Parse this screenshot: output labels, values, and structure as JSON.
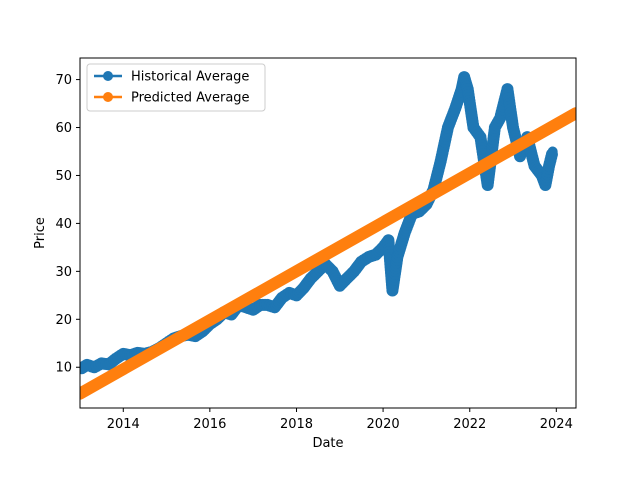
{
  "chart_data": {
    "type": "line",
    "title": "",
    "xlabel": "Date",
    "ylabel": "Price",
    "x_axis": {
      "type": "date",
      "range": [
        "2013-01-01",
        "2024-06-15"
      ],
      "ticks": [
        {
          "value": "2014-01-01",
          "label": "2014"
        },
        {
          "value": "2016-01-01",
          "label": "2016"
        },
        {
          "value": "2018-01-01",
          "label": "2018"
        },
        {
          "value": "2020-01-01",
          "label": "2020"
        },
        {
          "value": "2022-01-01",
          "label": "2022"
        },
        {
          "value": "2024-01-01",
          "label": "2024"
        }
      ]
    },
    "y_axis": {
      "range": [
        1.5,
        74.5
      ],
      "ticks": [
        10,
        20,
        30,
        40,
        50,
        60,
        70
      ]
    },
    "grid": false,
    "legend": {
      "placement": "top-left"
    },
    "series": [
      {
        "name": "Historical Average",
        "color": "#1f77b4",
        "marker": "circle",
        "points": [
          [
            "2013-01-15",
            9.8
          ],
          [
            "2013-03-01",
            10.5
          ],
          [
            "2013-05-01",
            10.0
          ],
          [
            "2013-07-01",
            10.8
          ],
          [
            "2013-09-01",
            10.6
          ],
          [
            "2013-11-01",
            11.8
          ],
          [
            "2014-01-01",
            12.8
          ],
          [
            "2014-03-01",
            12.5
          ],
          [
            "2014-05-01",
            13.0
          ],
          [
            "2014-07-01",
            12.8
          ],
          [
            "2014-09-01",
            13.2
          ],
          [
            "2014-11-01",
            14.0
          ],
          [
            "2015-01-01",
            15.0
          ],
          [
            "2015-03-01",
            16.0
          ],
          [
            "2015-05-01",
            16.5
          ],
          [
            "2015-07-01",
            16.8
          ],
          [
            "2015-09-01",
            16.5
          ],
          [
            "2015-11-01",
            17.5
          ],
          [
            "2016-01-01",
            19.0
          ],
          [
            "2016-03-01",
            20.0
          ],
          [
            "2016-05-01",
            21.5
          ],
          [
            "2016-07-01",
            21.0
          ],
          [
            "2016-09-01",
            23.0
          ],
          [
            "2016-11-01",
            22.5
          ],
          [
            "2017-01-01",
            22.0
          ],
          [
            "2017-03-01",
            23.0
          ],
          [
            "2017-05-01",
            23.0
          ],
          [
            "2017-07-01",
            22.5
          ],
          [
            "2017-09-01",
            24.5
          ],
          [
            "2017-11-01",
            25.5
          ],
          [
            "2018-01-01",
            25.0
          ],
          [
            "2018-03-01",
            26.5
          ],
          [
            "2018-05-01",
            28.5
          ],
          [
            "2018-07-01",
            30.0
          ],
          [
            "2018-09-01",
            31.5
          ],
          [
            "2018-11-01",
            30.0
          ],
          [
            "2019-01-01",
            27.0
          ],
          [
            "2019-03-01",
            28.5
          ],
          [
            "2019-05-01",
            30.0
          ],
          [
            "2019-07-01",
            32.0
          ],
          [
            "2019-09-01",
            33.0
          ],
          [
            "2019-11-01",
            33.5
          ],
          [
            "2020-01-01",
            35.0
          ],
          [
            "2020-02-15",
            36.5
          ],
          [
            "2020-03-20",
            26.0
          ],
          [
            "2020-05-01",
            33.0
          ],
          [
            "2020-07-01",
            38.0
          ],
          [
            "2020-09-01",
            42.0
          ],
          [
            "2020-11-01",
            42.5
          ],
          [
            "2021-01-01",
            44.0
          ],
          [
            "2021-03-01",
            47.0
          ],
          [
            "2021-05-01",
            53.0
          ],
          [
            "2021-07-01",
            60.0
          ],
          [
            "2021-09-01",
            64.0
          ],
          [
            "2021-10-25",
            68.0
          ],
          [
            "2021-11-15",
            70.5
          ],
          [
            "2021-12-15",
            68.0
          ],
          [
            "2022-02-01",
            60.0
          ],
          [
            "2022-04-01",
            58.0
          ],
          [
            "2022-06-01",
            48.0
          ],
          [
            "2022-08-01",
            60.0
          ],
          [
            "2022-09-15",
            62.0
          ],
          [
            "2022-11-15",
            68.0
          ],
          [
            "2023-01-01",
            60.0
          ],
          [
            "2023-03-01",
            54.0
          ],
          [
            "2023-05-01",
            58.0
          ],
          [
            "2023-07-01",
            52.0
          ],
          [
            "2023-09-01",
            50.0
          ],
          [
            "2023-10-01",
            48.0
          ],
          [
            "2023-11-01",
            52.0
          ],
          [
            "2023-12-01",
            55.0
          ]
        ]
      },
      {
        "name": "Predicted Average",
        "color": "#ff7f0e",
        "marker": "circle",
        "points": [
          [
            "2013-01-01",
            4.5
          ],
          [
            "2024-06-15",
            63.0
          ]
        ]
      }
    ]
  }
}
